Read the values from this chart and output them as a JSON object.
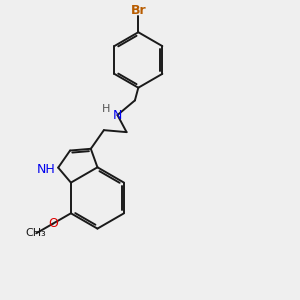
{
  "background_color": "#efefef",
  "bond_color": "#1a1a1a",
  "n_color": "#0000ee",
  "o_color": "#dd0000",
  "br_color": "#b85c00",
  "font_size": 8.5,
  "lw": 1.4,
  "figsize": [
    3.0,
    3.0
  ],
  "dpi": 100,
  "xlim": [
    0,
    10
  ],
  "ylim": [
    0,
    10
  ]
}
